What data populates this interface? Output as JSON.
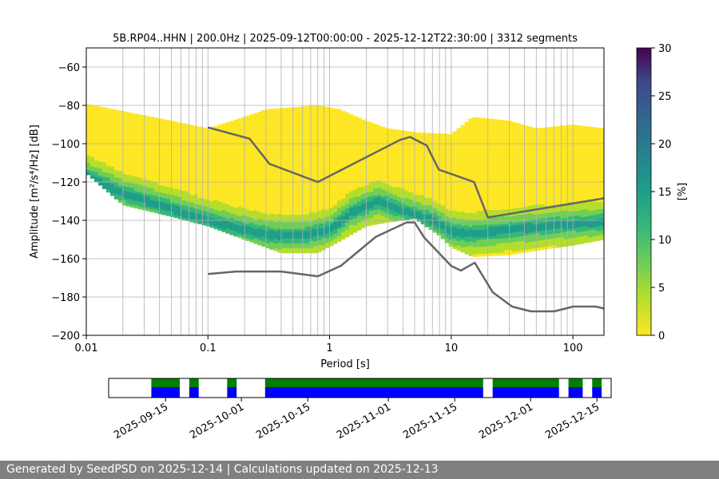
{
  "footer": {
    "text": "Generated by SeedPSD on 2025-12-14 | Calculations updated on 2025-12-13"
  },
  "chart_data": [
    {
      "type": "heatmap",
      "title": "5B.RP04..HHN | 200.0Hz | 2025-09-12T00:00:00 - 2025-12-12T22:30:00 | 3312 segments",
      "xlabel": "Period [s]",
      "ylabel": "Amplitude [m²/s⁴/Hz] [dB]",
      "x_scale": "log",
      "xlim": [
        0.01,
        180
      ],
      "ylim": [
        -200,
        -50
      ],
      "x_ticks": [
        0.01,
        0.1,
        1,
        10,
        100
      ],
      "x_tick_labels": [
        "0.01",
        "0.1",
        "1",
        "10",
        "100"
      ],
      "y_ticks": [
        -200,
        -180,
        -160,
        -140,
        -120,
        -100,
        -80,
        -60
      ],
      "y_tick_labels": [
        "−200",
        "−180",
        "−160",
        "−140",
        "−120",
        "−100",
        "−80",
        "−60"
      ],
      "grid": true,
      "colorscale": "viridis_r",
      "colorbar": {
        "label": "[%]",
        "range": [
          0,
          30
        ],
        "ticks": [
          0,
          5,
          10,
          15,
          20,
          25,
          30
        ]
      },
      "envelope_upper": [
        [
          0.008,
          -78
        ],
        [
          0.02,
          -83
        ],
        [
          0.05,
          -88
        ],
        [
          0.1,
          -92
        ],
        [
          0.2,
          -86
        ],
        [
          0.3,
          -82
        ],
        [
          0.5,
          -81
        ],
        [
          0.8,
          -80
        ],
        [
          1.2,
          -82
        ],
        [
          2,
          -88
        ],
        [
          3,
          -92
        ],
        [
          5,
          -94
        ],
        [
          10,
          -95
        ],
        [
          15,
          -86
        ],
        [
          30,
          -88
        ],
        [
          50,
          -92
        ],
        [
          100,
          -90
        ],
        [
          180,
          -92
        ]
      ],
      "envelope_lower": [
        [
          0.008,
          -110
        ],
        [
          0.02,
          -132
        ],
        [
          0.05,
          -138
        ],
        [
          0.1,
          -143
        ],
        [
          0.2,
          -150
        ],
        [
          0.4,
          -157
        ],
        [
          0.8,
          -157
        ],
        [
          1.2,
          -151
        ],
        [
          2,
          -143
        ],
        [
          3,
          -141
        ],
        [
          5,
          -139
        ],
        [
          8,
          -148
        ],
        [
          10,
          -154
        ],
        [
          15,
          -159
        ],
        [
          30,
          -158
        ],
        [
          60,
          -155
        ],
        [
          100,
          -153
        ],
        [
          180,
          -150
        ]
      ],
      "mode_curve": [
        [
          0.008,
          -114
        ],
        [
          0.02,
          -126
        ],
        [
          0.05,
          -134
        ],
        [
          0.1,
          -140
        ],
        [
          0.2,
          -145
        ],
        [
          0.35,
          -148
        ],
        [
          0.6,
          -148
        ],
        [
          1,
          -145
        ],
        [
          1.5,
          -136
        ],
        [
          2.5,
          -130
        ],
        [
          4,
          -135
        ],
        [
          5,
          -137
        ],
        [
          7,
          -140
        ],
        [
          10,
          -146
        ],
        [
          15,
          -147
        ],
        [
          30,
          -145
        ],
        [
          60,
          -143
        ],
        [
          100,
          -142
        ],
        [
          180,
          -141
        ]
      ],
      "series": [
        {
          "name": "NHNM",
          "points": [
            [
              0.1,
              -91.5
            ],
            [
              0.22,
              -97.4
            ],
            [
              0.32,
              -110.5
            ],
            [
              0.8,
              -120
            ],
            [
              3.8,
              -98
            ],
            [
              4.6,
              -96.5
            ],
            [
              6.3,
              -101
            ],
            [
              7.9,
              -113.5
            ],
            [
              15.4,
              -120
            ],
            [
              20,
              -138.5
            ],
            [
              180,
              -128.5
            ]
          ]
        },
        {
          "name": "NLNM",
          "points": [
            [
              0.1,
              -168
            ],
            [
              0.17,
              -166.7
            ],
            [
              0.4,
              -166.7
            ],
            [
              0.8,
              -169.2
            ],
            [
              1.24,
              -163.7
            ],
            [
              2.4,
              -148.6
            ],
            [
              4.3,
              -141.1
            ],
            [
              5,
              -141.1
            ],
            [
              6,
              -149
            ],
            [
              10,
              -163.8
            ],
            [
              12,
              -166.2
            ],
            [
              15.6,
              -162.1
            ],
            [
              21.9,
              -177.5
            ],
            [
              31.6,
              -185
            ],
            [
              45,
              -187.5
            ],
            [
              70,
              -187.5
            ],
            [
              101,
              -185
            ],
            [
              154,
              -185
            ],
            [
              180,
              -186
            ]
          ]
        }
      ]
    },
    {
      "type": "bar",
      "title": "",
      "x_scale": "date",
      "xlim": [
        "2025-09-03",
        "2025-12-18"
      ],
      "x_ticks": [
        "2025-09-15",
        "2025-10-01",
        "2025-10-15",
        "2025-11-01",
        "2025-11-15",
        "2025-12-01",
        "2025-12-15"
      ],
      "x_tick_labels": [
        "2025-09-15",
        "2025-10-01",
        "2025-10-15",
        "2025-11-01",
        "2025-11-15",
        "2025-12-01",
        "2025-12-15"
      ],
      "series": [
        {
          "name": "",
          "color": "#008000",
          "ranges": [
            [
              "2025-09-12",
              "2025-09-18"
            ],
            [
              "2025-09-20",
              "2025-09-22"
            ],
            [
              "2025-09-28",
              "2025-09-30"
            ],
            [
              "2025-10-06",
              "2025-11-21"
            ],
            [
              "2025-11-23",
              "2025-12-07"
            ],
            [
              "2025-12-09",
              "2025-12-12"
            ],
            [
              "2025-12-14",
              "2025-12-16"
            ]
          ]
        },
        {
          "name": "",
          "color": "#0000ff",
          "ranges": [
            [
              "2025-09-12",
              "2025-09-18"
            ],
            [
              "2025-09-20",
              "2025-09-22"
            ],
            [
              "2025-09-28",
              "2025-09-30"
            ],
            [
              "2025-10-06",
              "2025-11-21"
            ],
            [
              "2025-11-23",
              "2025-12-07"
            ],
            [
              "2025-12-09",
              "2025-12-12"
            ],
            [
              "2025-12-14",
              "2025-12-16"
            ]
          ]
        }
      ]
    }
  ]
}
